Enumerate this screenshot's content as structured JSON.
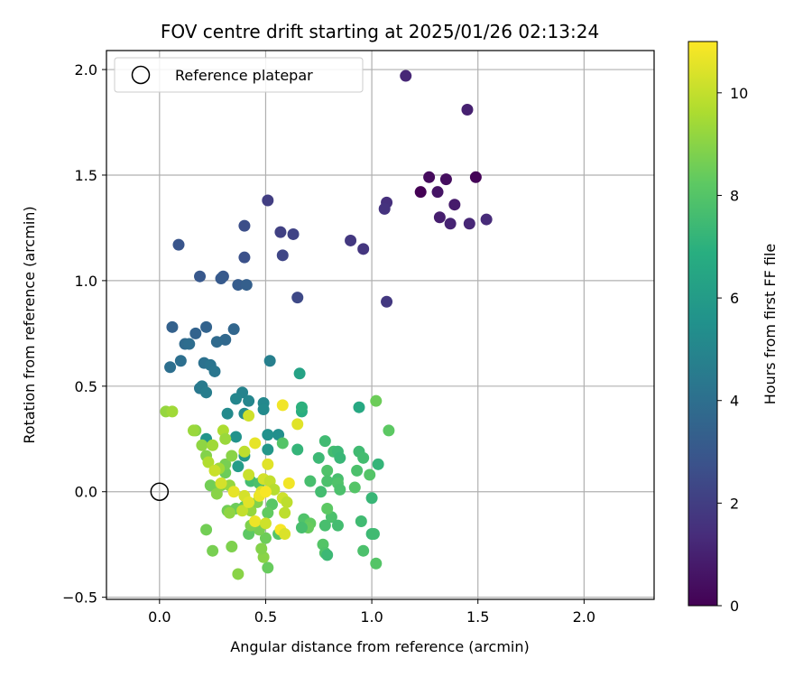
{
  "chart_data": {
    "type": "scatter",
    "title": "FOV centre drift starting at 2025/01/26 02:13:24",
    "xlabel": "Angular distance from reference (arcmin)",
    "ylabel": "Rotation from reference (arcmin)",
    "xlim": [
      -0.25,
      2.33
    ],
    "ylim": [
      -0.51,
      2.09
    ],
    "xticks": [
      0.0,
      0.5,
      1.0,
      1.5,
      2.0
    ],
    "yticks": [
      -0.5,
      0.0,
      0.5,
      1.0,
      1.5,
      2.0
    ],
    "xtick_labels": [
      "0.0",
      "0.5",
      "1.0",
      "1.5",
      "2.0"
    ],
    "ytick_labels": [
      "−0.5",
      "0.0",
      "0.5",
      "1.0",
      "1.5",
      "2.0"
    ],
    "grid": true,
    "legend": {
      "position": "top-left",
      "entries": [
        "Reference platepar"
      ]
    },
    "reference_point": {
      "x": 0.0,
      "y": 0.0
    },
    "colorbar": {
      "label": "Hours from first FF file",
      "range": [
        0,
        11
      ],
      "ticks": [
        0,
        2,
        4,
        6,
        8,
        10
      ],
      "tick_labels": [
        "0",
        "2",
        "4",
        "6",
        "8",
        "10"
      ],
      "colormap": "viridis"
    },
    "points": [
      {
        "x": 1.23,
        "y": 1.42,
        "c": 0.0
      },
      {
        "x": 1.49,
        "y": 1.49,
        "c": 0.1
      },
      {
        "x": 1.27,
        "y": 1.49,
        "c": 0.3
      },
      {
        "x": 1.35,
        "y": 1.48,
        "c": 0.4
      },
      {
        "x": 1.31,
        "y": 1.42,
        "c": 0.6
      },
      {
        "x": 1.39,
        "y": 1.36,
        "c": 0.8
      },
      {
        "x": 1.32,
        "y": 1.3,
        "c": 0.9
      },
      {
        "x": 1.37,
        "y": 1.27,
        "c": 1.1
      },
      {
        "x": 1.46,
        "y": 1.27,
        "c": 1.2
      },
      {
        "x": 1.54,
        "y": 1.29,
        "c": 1.3
      },
      {
        "x": 1.45,
        "y": 1.81,
        "c": 1.0
      },
      {
        "x": 1.16,
        "y": 1.97,
        "c": 1.2
      },
      {
        "x": 1.07,
        "y": 1.37,
        "c": 1.5
      },
      {
        "x": 1.06,
        "y": 1.34,
        "c": 1.6
      },
      {
        "x": 0.96,
        "y": 1.15,
        "c": 1.7
      },
      {
        "x": 0.9,
        "y": 1.19,
        "c": 1.8
      },
      {
        "x": 1.07,
        "y": 0.9,
        "c": 1.8
      },
      {
        "x": 0.51,
        "y": 1.38,
        "c": 2.0
      },
      {
        "x": 0.57,
        "y": 1.23,
        "c": 2.1
      },
      {
        "x": 0.63,
        "y": 1.22,
        "c": 2.2
      },
      {
        "x": 0.58,
        "y": 1.12,
        "c": 2.3
      },
      {
        "x": 0.65,
        "y": 0.92,
        "c": 2.4
      },
      {
        "x": 0.4,
        "y": 1.26,
        "c": 2.6
      },
      {
        "x": 0.4,
        "y": 1.11,
        "c": 2.7
      },
      {
        "x": 0.09,
        "y": 1.17,
        "c": 2.9
      },
      {
        "x": 0.19,
        "y": 1.02,
        "c": 3.0
      },
      {
        "x": 0.3,
        "y": 1.02,
        "c": 3.0
      },
      {
        "x": 0.29,
        "y": 1.01,
        "c": 3.1
      },
      {
        "x": 0.37,
        "y": 0.98,
        "c": 3.2
      },
      {
        "x": 0.41,
        "y": 0.98,
        "c": 3.3
      },
      {
        "x": 0.06,
        "y": 0.78,
        "c": 3.4
      },
      {
        "x": 0.22,
        "y": 0.78,
        "c": 3.5
      },
      {
        "x": 0.17,
        "y": 0.75,
        "c": 3.5
      },
      {
        "x": 0.35,
        "y": 0.77,
        "c": 3.6
      },
      {
        "x": 0.31,
        "y": 0.72,
        "c": 3.7
      },
      {
        "x": 0.27,
        "y": 0.71,
        "c": 3.8
      },
      {
        "x": 0.12,
        "y": 0.7,
        "c": 3.8
      },
      {
        "x": 0.14,
        "y": 0.7,
        "c": 3.9
      },
      {
        "x": 0.1,
        "y": 0.62,
        "c": 4.0
      },
      {
        "x": 0.05,
        "y": 0.59,
        "c": 4.0
      },
      {
        "x": 0.21,
        "y": 0.61,
        "c": 4.1
      },
      {
        "x": 0.24,
        "y": 0.6,
        "c": 4.2
      },
      {
        "x": 0.26,
        "y": 0.57,
        "c": 4.3
      },
      {
        "x": 0.19,
        "y": 0.49,
        "c": 4.4
      },
      {
        "x": 0.2,
        "y": 0.5,
        "c": 4.5
      },
      {
        "x": 0.22,
        "y": 0.47,
        "c": 4.6
      },
      {
        "x": 0.52,
        "y": 0.62,
        "c": 4.7
      },
      {
        "x": 0.39,
        "y": 0.47,
        "c": 4.9
      },
      {
        "x": 0.36,
        "y": 0.44,
        "c": 5.0
      },
      {
        "x": 0.42,
        "y": 0.43,
        "c": 5.0
      },
      {
        "x": 0.49,
        "y": 0.42,
        "c": 5.1
      },
      {
        "x": 0.49,
        "y": 0.39,
        "c": 5.2
      },
      {
        "x": 0.32,
        "y": 0.37,
        "c": 5.2
      },
      {
        "x": 0.4,
        "y": 0.37,
        "c": 5.3
      },
      {
        "x": 0.56,
        "y": 0.27,
        "c": 5.4
      },
      {
        "x": 0.51,
        "y": 0.27,
        "c": 5.5
      },
      {
        "x": 0.36,
        "y": 0.26,
        "c": 5.6
      },
      {
        "x": 0.22,
        "y": 0.25,
        "c": 5.7
      },
      {
        "x": 0.51,
        "y": 0.2,
        "c": 5.8
      },
      {
        "x": 0.4,
        "y": 0.17,
        "c": 5.9
      },
      {
        "x": 0.37,
        "y": 0.12,
        "c": 6.0
      },
      {
        "x": 0.66,
        "y": 0.56,
        "c": 6.3
      },
      {
        "x": 0.94,
        "y": 0.4,
        "c": 6.6
      },
      {
        "x": 0.67,
        "y": 0.38,
        "c": 6.8
      },
      {
        "x": 0.67,
        "y": 0.4,
        "c": 7.0
      },
      {
        "x": 0.65,
        "y": 0.2,
        "c": 7.2
      },
      {
        "x": 0.75,
        "y": 0.16,
        "c": 7.4
      },
      {
        "x": 0.78,
        "y": 0.24,
        "c": 7.5
      },
      {
        "x": 0.82,
        "y": 0.19,
        "c": 7.6
      },
      {
        "x": 0.84,
        "y": 0.19,
        "c": 7.4
      },
      {
        "x": 0.85,
        "y": 0.16,
        "c": 7.3
      },
      {
        "x": 0.94,
        "y": 0.19,
        "c": 7.5
      },
      {
        "x": 0.96,
        "y": 0.16,
        "c": 7.6
      },
      {
        "x": 1.03,
        "y": 0.13,
        "c": 7.2
      },
      {
        "x": 0.93,
        "y": 0.1,
        "c": 7.8
      },
      {
        "x": 0.99,
        "y": 0.08,
        "c": 8.0
      },
      {
        "x": 0.79,
        "y": 0.1,
        "c": 7.9
      },
      {
        "x": 0.71,
        "y": 0.05,
        "c": 7.7
      },
      {
        "x": 0.79,
        "y": 0.05,
        "c": 7.8
      },
      {
        "x": 0.84,
        "y": 0.06,
        "c": 7.7
      },
      {
        "x": 0.84,
        "y": 0.04,
        "c": 7.9
      },
      {
        "x": 0.92,
        "y": 0.02,
        "c": 8.0
      },
      {
        "x": 0.85,
        "y": 0.01,
        "c": 7.8
      },
      {
        "x": 0.76,
        "y": 0.0,
        "c": 7.6
      },
      {
        "x": 1.0,
        "y": -0.03,
        "c": 7.3
      },
      {
        "x": 1.08,
        "y": 0.29,
        "c": 8.2
      },
      {
        "x": 1.02,
        "y": 0.43,
        "c": 8.5
      },
      {
        "x": 0.58,
        "y": 0.23,
        "c": 8.0
      },
      {
        "x": 0.81,
        "y": -0.12,
        "c": 7.8
      },
      {
        "x": 0.84,
        "y": -0.16,
        "c": 7.6
      },
      {
        "x": 0.78,
        "y": -0.16,
        "c": 7.7
      },
      {
        "x": 0.68,
        "y": -0.13,
        "c": 7.9
      },
      {
        "x": 0.71,
        "y": -0.15,
        "c": 8.3
      },
      {
        "x": 0.95,
        "y": -0.14,
        "c": 7.5
      },
      {
        "x": 0.79,
        "y": -0.08,
        "c": 8.2
      },
      {
        "x": 1.0,
        "y": -0.2,
        "c": 7.4
      },
      {
        "x": 1.01,
        "y": -0.2,
        "c": 7.5
      },
      {
        "x": 0.7,
        "y": -0.17,
        "c": 8.4
      },
      {
        "x": 0.77,
        "y": -0.25,
        "c": 8.0
      },
      {
        "x": 0.78,
        "y": -0.29,
        "c": 7.9
      },
      {
        "x": 0.79,
        "y": -0.3,
        "c": 7.4
      },
      {
        "x": 0.96,
        "y": -0.28,
        "c": 7.8
      },
      {
        "x": 1.02,
        "y": -0.34,
        "c": 8.0
      },
      {
        "x": 0.67,
        "y": -0.17,
        "c": 7.7
      },
      {
        "x": 0.43,
        "y": 0.05,
        "c": 7.6
      },
      {
        "x": 0.47,
        "y": 0.04,
        "c": 7.8
      },
      {
        "x": 0.53,
        "y": -0.06,
        "c": 8.1
      },
      {
        "x": 0.51,
        "y": -0.1,
        "c": 8.3
      },
      {
        "x": 0.56,
        "y": -0.2,
        "c": 8.0
      },
      {
        "x": 0.5,
        "y": -0.22,
        "c": 8.5
      },
      {
        "x": 0.47,
        "y": -0.18,
        "c": 8.7
      },
      {
        "x": 0.42,
        "y": -0.2,
        "c": 8.2
      },
      {
        "x": 0.43,
        "y": -0.16,
        "c": 8.8
      },
      {
        "x": 0.51,
        "y": -0.36,
        "c": 8.4
      },
      {
        "x": 0.49,
        "y": -0.31,
        "c": 9.0
      },
      {
        "x": 0.48,
        "y": -0.27,
        "c": 8.9
      },
      {
        "x": 0.34,
        "y": -0.26,
        "c": 8.8
      },
      {
        "x": 0.25,
        "y": -0.28,
        "c": 8.7
      },
      {
        "x": 0.22,
        "y": -0.18,
        "c": 8.6
      },
      {
        "x": 0.37,
        "y": -0.39,
        "c": 9.0
      },
      {
        "x": 0.36,
        "y": -0.08,
        "c": 8.5
      },
      {
        "x": 0.4,
        "y": -0.07,
        "c": 8.3
      },
      {
        "x": 0.32,
        "y": -0.09,
        "c": 8.6
      },
      {
        "x": 0.33,
        "y": -0.1,
        "c": 9.1
      },
      {
        "x": 0.43,
        "y": -0.09,
        "c": 9.2
      },
      {
        "x": 0.46,
        "y": -0.05,
        "c": 8.9
      },
      {
        "x": 0.27,
        "y": 0.02,
        "c": 8.4
      },
      {
        "x": 0.24,
        "y": 0.03,
        "c": 8.6
      },
      {
        "x": 0.29,
        "y": 0.03,
        "c": 8.8
      },
      {
        "x": 0.27,
        "y": -0.01,
        "c": 9.0
      },
      {
        "x": 0.33,
        "y": 0.03,
        "c": 9.2
      },
      {
        "x": 0.31,
        "y": 0.09,
        "c": 8.5
      },
      {
        "x": 0.31,
        "y": 0.13,
        "c": 8.7
      },
      {
        "x": 0.28,
        "y": 0.11,
        "c": 9.4
      },
      {
        "x": 0.34,
        "y": 0.17,
        "c": 9.0
      },
      {
        "x": 0.22,
        "y": 0.17,
        "c": 8.9
      },
      {
        "x": 0.2,
        "y": 0.22,
        "c": 9.1
      },
      {
        "x": 0.25,
        "y": 0.22,
        "c": 9.4
      },
      {
        "x": 0.3,
        "y": 0.29,
        "c": 9.6
      },
      {
        "x": 0.31,
        "y": 0.25,
        "c": 9.3
      },
      {
        "x": 0.17,
        "y": 0.29,
        "c": 9.0
      },
      {
        "x": 0.16,
        "y": 0.29,
        "c": 9.3
      },
      {
        "x": 0.03,
        "y": 0.38,
        "c": 9.2
      },
      {
        "x": 0.06,
        "y": 0.38,
        "c": 9.4
      },
      {
        "x": 0.42,
        "y": 0.36,
        "c": 10.2
      },
      {
        "x": 0.45,
        "y": 0.23,
        "c": 10.6
      },
      {
        "x": 0.51,
        "y": 0.13,
        "c": 10.5
      },
      {
        "x": 0.58,
        "y": 0.41,
        "c": 10.8
      },
      {
        "x": 0.65,
        "y": 0.32,
        "c": 10.5
      },
      {
        "x": 0.4,
        "y": 0.19,
        "c": 9.9
      },
      {
        "x": 0.42,
        "y": 0.08,
        "c": 10.1
      },
      {
        "x": 0.49,
        "y": 0.06,
        "c": 10.3
      },
      {
        "x": 0.52,
        "y": 0.05,
        "c": 10.0
      },
      {
        "x": 0.54,
        "y": 0.01,
        "c": 9.8
      },
      {
        "x": 0.48,
        "y": 0.0,
        "c": 10.4
      },
      {
        "x": 0.47,
        "y": -0.02,
        "c": 10.7
      },
      {
        "x": 0.58,
        "y": -0.03,
        "c": 10.2
      },
      {
        "x": 0.6,
        "y": -0.05,
        "c": 9.9
      },
      {
        "x": 0.61,
        "y": 0.04,
        "c": 10.8
      },
      {
        "x": 0.35,
        "y": 0.0,
        "c": 10.6
      },
      {
        "x": 0.4,
        "y": -0.02,
        "c": 10.3
      },
      {
        "x": 0.39,
        "y": -0.09,
        "c": 10.0
      },
      {
        "x": 0.42,
        "y": -0.05,
        "c": 10.5
      },
      {
        "x": 0.45,
        "y": -0.14,
        "c": 10.7
      },
      {
        "x": 0.5,
        "y": -0.15,
        "c": 10.2
      },
      {
        "x": 0.57,
        "y": -0.18,
        "c": 10.9
      },
      {
        "x": 0.59,
        "y": -0.2,
        "c": 10.4
      },
      {
        "x": 0.59,
        "y": -0.1,
        "c": 9.9
      },
      {
        "x": 0.23,
        "y": 0.14,
        "c": 9.7
      },
      {
        "x": 0.26,
        "y": 0.1,
        "c": 10.1
      },
      {
        "x": 0.29,
        "y": 0.04,
        "c": 10.3
      },
      {
        "x": 0.5,
        "y": 0.0,
        "c": 10.9
      }
    ]
  }
}
